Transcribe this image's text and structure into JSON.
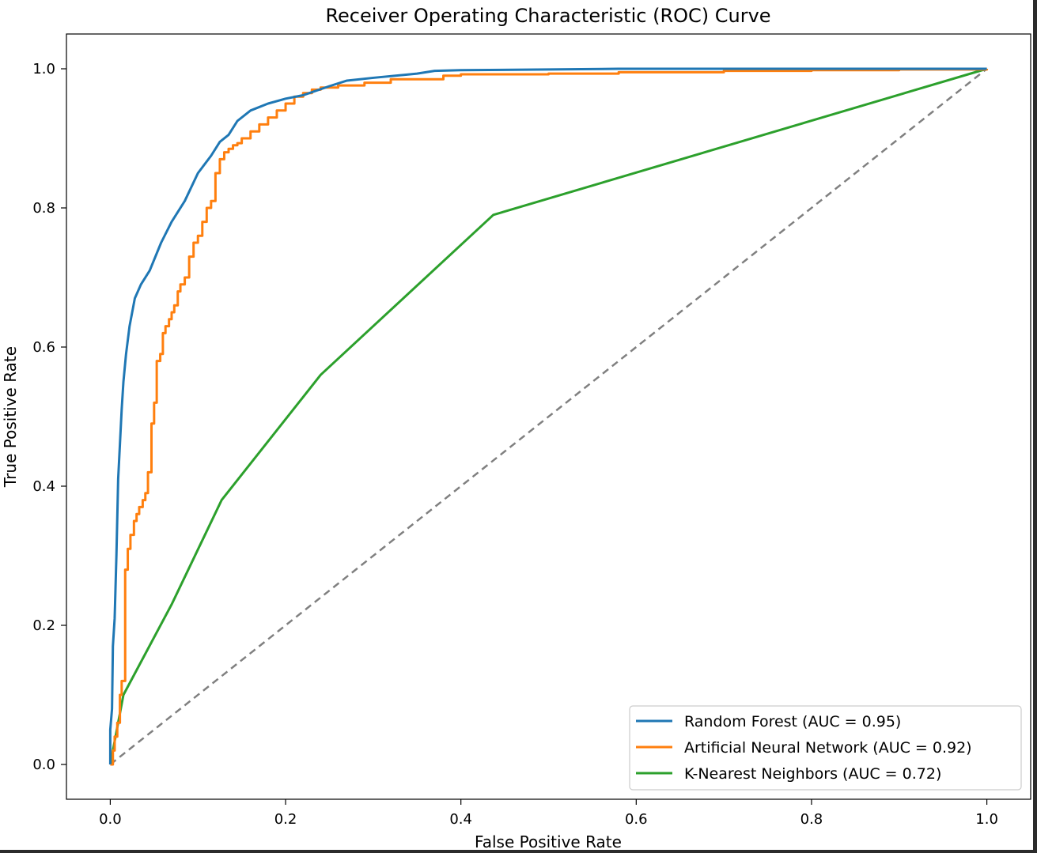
{
  "chart_data": {
    "type": "line",
    "title": "Receiver Operating Characteristic (ROC) Curve",
    "xlabel": "False Positive Rate",
    "ylabel": "True Positive Rate",
    "xlim": [
      -0.05,
      1.05
    ],
    "ylim": [
      -0.05,
      1.05
    ],
    "xticks": [
      0.0,
      0.2,
      0.4,
      0.6,
      0.8,
      1.0
    ],
    "xtick_labels": [
      "0.0",
      "0.2",
      "0.4",
      "0.6",
      "0.8",
      "1.0"
    ],
    "yticks": [
      0.0,
      0.2,
      0.4,
      0.6,
      0.8,
      1.0
    ],
    "ytick_labels": [
      "0.0",
      "0.2",
      "0.4",
      "0.6",
      "0.8",
      "1.0"
    ],
    "grid": false,
    "legend_position": "lower-right",
    "series": [
      {
        "name": "Random Forest (AUC = 0.95)",
        "color": "#1f77b4",
        "step": false,
        "x": [
          0.0,
          0.0,
          0.002,
          0.003,
          0.005,
          0.007,
          0.009,
          0.011,
          0.013,
          0.015,
          0.018,
          0.022,
          0.028,
          0.035,
          0.045,
          0.058,
          0.07,
          0.085,
          0.1,
          0.115,
          0.125,
          0.135,
          0.145,
          0.16,
          0.18,
          0.2,
          0.22,
          0.25,
          0.27,
          0.3,
          0.35,
          0.37,
          0.4,
          0.5,
          0.58,
          0.8,
          1.0
        ],
        "y": [
          0.0,
          0.05,
          0.08,
          0.17,
          0.21,
          0.3,
          0.41,
          0.46,
          0.51,
          0.55,
          0.59,
          0.63,
          0.67,
          0.69,
          0.71,
          0.75,
          0.78,
          0.81,
          0.85,
          0.875,
          0.895,
          0.905,
          0.925,
          0.94,
          0.95,
          0.957,
          0.962,
          0.975,
          0.983,
          0.987,
          0.993,
          0.997,
          0.998,
          0.999,
          1.0,
          1.0,
          1.0
        ]
      },
      {
        "name": "Artificial Neural Network (AUC = 0.92)",
        "color": "#ff7f0e",
        "step": true,
        "x": [
          0.0,
          0.003,
          0.005,
          0.008,
          0.011,
          0.013,
          0.017,
          0.02,
          0.023,
          0.027,
          0.03,
          0.033,
          0.037,
          0.04,
          0.043,
          0.047,
          0.05,
          0.053,
          0.057,
          0.06,
          0.063,
          0.067,
          0.07,
          0.073,
          0.077,
          0.08,
          0.085,
          0.09,
          0.095,
          0.1,
          0.105,
          0.11,
          0.115,
          0.12,
          0.125,
          0.13,
          0.135,
          0.14,
          0.145,
          0.15,
          0.16,
          0.17,
          0.18,
          0.19,
          0.2,
          0.21,
          0.22,
          0.23,
          0.24,
          0.26,
          0.29,
          0.32,
          0.38,
          0.4,
          0.5,
          0.58,
          0.7,
          0.8,
          0.9,
          1.0
        ],
        "y": [
          0.0,
          0.02,
          0.04,
          0.06,
          0.1,
          0.12,
          0.28,
          0.31,
          0.33,
          0.35,
          0.36,
          0.37,
          0.38,
          0.39,
          0.42,
          0.49,
          0.52,
          0.58,
          0.59,
          0.62,
          0.63,
          0.64,
          0.65,
          0.66,
          0.68,
          0.69,
          0.7,
          0.73,
          0.75,
          0.76,
          0.78,
          0.8,
          0.81,
          0.85,
          0.87,
          0.88,
          0.885,
          0.89,
          0.893,
          0.9,
          0.91,
          0.92,
          0.93,
          0.94,
          0.95,
          0.96,
          0.965,
          0.97,
          0.973,
          0.976,
          0.98,
          0.985,
          0.99,
          0.992,
          0.993,
          0.995,
          0.997,
          0.998,
          0.999,
          1.0
        ]
      },
      {
        "name": "K-Nearest Neighbors (AUC = 0.72)",
        "color": "#2ca02c",
        "step": false,
        "x": [
          0.0,
          0.015,
          0.07,
          0.127,
          0.24,
          0.437,
          1.0
        ],
        "y": [
          0.0,
          0.1,
          0.23,
          0.38,
          0.56,
          0.79,
          1.0
        ]
      },
      {
        "name": "",
        "color": "#808080",
        "dashed": true,
        "step": false,
        "x": [
          0.0,
          1.0
        ],
        "y": [
          0.0,
          1.0
        ]
      }
    ]
  }
}
